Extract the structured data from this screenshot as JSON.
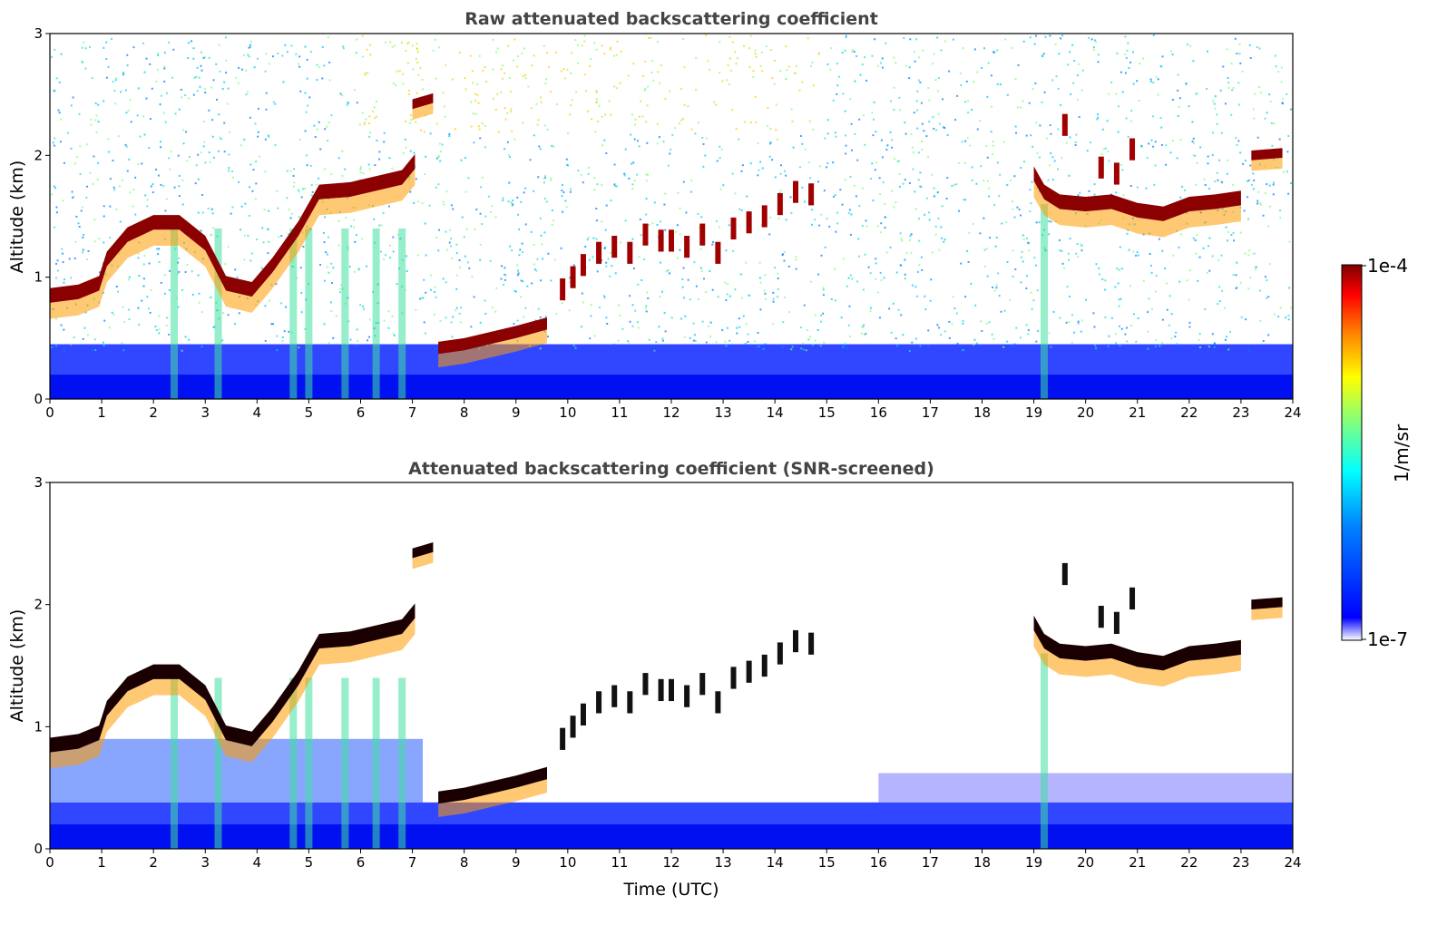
{
  "chart_data": [
    {
      "type": "heatmap",
      "title": "Raw attenuated backscattering coefficient",
      "xlabel": "",
      "ylabel": "Altitude (km)",
      "xlim": [
        0,
        24
      ],
      "ylim": [
        0,
        3
      ],
      "xticks": [
        0,
        1,
        2,
        3,
        4,
        5,
        6,
        7,
        8,
        9,
        10,
        11,
        12,
        13,
        14,
        15,
        16,
        17,
        18,
        19,
        20,
        21,
        22,
        23,
        24
      ],
      "yticks": [
        0,
        1,
        2
      ],
      "yticks_top": 3,
      "screened": false,
      "features": {
        "cloud_layers": [
          {
            "points": [
              [
                0,
                0.85
              ],
              [
                0.55,
                0.88
              ],
              [
                0.95,
                0.95
              ],
              [
                1.1,
                1.15
              ],
              [
                1.5,
                1.35
              ],
              [
                2.0,
                1.45
              ],
              [
                2.5,
                1.45
              ],
              [
                3.0,
                1.28
              ],
              [
                3.4,
                0.95
              ],
              [
                3.9,
                0.9
              ],
              [
                4.3,
                1.1
              ],
              [
                4.8,
                1.4
              ],
              [
                5.2,
                1.7
              ],
              [
                5.8,
                1.72
              ],
              [
                6.4,
                1.78
              ],
              [
                6.8,
                1.82
              ],
              [
                7.05,
                1.95
              ]
            ],
            "thickness": 0.12
          },
          {
            "points": [
              [
                19.0,
                1.85
              ],
              [
                19.2,
                1.7
              ],
              [
                19.5,
                1.62
              ],
              [
                20.0,
                1.6
              ],
              [
                20.5,
                1.62
              ],
              [
                21.0,
                1.55
              ],
              [
                21.5,
                1.52
              ],
              [
                22.0,
                1.6
              ],
              [
                22.5,
                1.62
              ],
              [
                23.0,
                1.65
              ]
            ],
            "thickness": 0.12
          },
          {
            "points": [
              [
                23.2,
                2.0
              ],
              [
                23.8,
                2.02
              ]
            ],
            "thickness": 0.08
          },
          {
            "points": [
              [
                7.0,
                2.42
              ],
              [
                7.4,
                2.47
              ]
            ],
            "thickness": 0.08
          },
          {
            "points": [
              [
                7.5,
                0.42
              ],
              [
                8.0,
                0.45
              ],
              [
                8.5,
                0.5
              ],
              [
                9.0,
                0.55
              ],
              [
                9.6,
                0.62
              ]
            ],
            "thickness": 0.1
          }
        ],
        "cloud_streaks": [
          [
            9.9,
            0.9
          ],
          [
            10.1,
            1.0
          ],
          [
            10.3,
            1.1
          ],
          [
            10.6,
            1.2
          ],
          [
            10.9,
            1.25
          ],
          [
            11.2,
            1.2
          ],
          [
            11.5,
            1.35
          ],
          [
            11.8,
            1.3
          ],
          [
            12.0,
            1.3
          ],
          [
            12.3,
            1.25
          ],
          [
            12.6,
            1.35
          ],
          [
            12.9,
            1.2
          ],
          [
            13.2,
            1.4
          ],
          [
            13.5,
            1.45
          ],
          [
            13.8,
            1.5
          ],
          [
            14.1,
            1.6
          ],
          [
            14.4,
            1.7
          ],
          [
            14.7,
            1.68
          ],
          [
            19.6,
            2.25
          ],
          [
            20.3,
            1.9
          ],
          [
            20.6,
            1.85
          ],
          [
            20.9,
            2.05
          ]
        ],
        "precipitation_columns": [
          2.4,
          3.25,
          4.7,
          5.0,
          5.7,
          6.3,
          6.8,
          19.2
        ]
      }
    },
    {
      "type": "heatmap",
      "title": "Attenuated backscattering coefficient (SNR-screened)",
      "xlabel": "Time (UTC)",
      "ylabel": "Altitude (km)",
      "xlim": [
        0,
        24
      ],
      "ylim": [
        0,
        3
      ],
      "xticks": [
        0,
        1,
        2,
        3,
        4,
        5,
        6,
        7,
        8,
        9,
        10,
        11,
        12,
        13,
        14,
        15,
        16,
        17,
        18,
        19,
        20,
        21,
        22,
        23,
        24
      ],
      "yticks": [
        0,
        1,
        2
      ],
      "yticks_top": 3,
      "screened": true
    }
  ],
  "colorbar": {
    "label": "1/m/sr",
    "max_label": "1e-4",
    "min_label": "1e-7",
    "scale": "log",
    "colormap": "jet",
    "stops": [
      "#ffffff",
      "#0000ff",
      "#0080ff",
      "#00ffff",
      "#80ff80",
      "#ffff00",
      "#ff8000",
      "#ff0000",
      "#800000"
    ]
  }
}
